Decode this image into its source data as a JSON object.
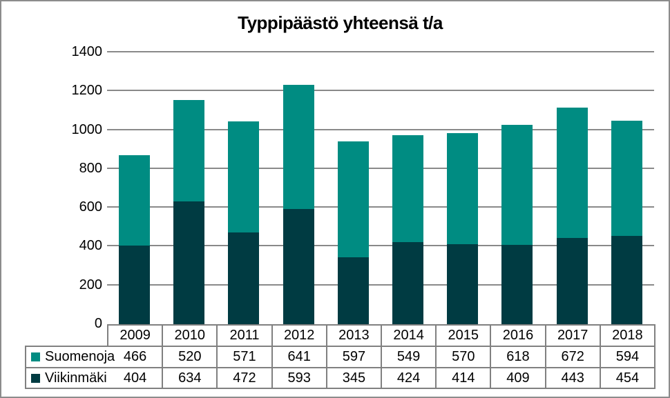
{
  "chart_data": {
    "type": "bar",
    "stacked": true,
    "title": "Typpipäästö yhteensä t/a",
    "categories": [
      "2009",
      "2010",
      "2011",
      "2012",
      "2013",
      "2014",
      "2015",
      "2016",
      "2017",
      "2018"
    ],
    "series": [
      {
        "name": "Suomenoja",
        "color": "#008C82",
        "values": [
          466,
          520,
          571,
          641,
          597,
          549,
          570,
          618,
          672,
          594
        ]
      },
      {
        "name": "Viikinmäki",
        "color": "#003B42",
        "values": [
          404,
          634,
          472,
          593,
          345,
          424,
          414,
          409,
          443,
          454
        ]
      }
    ],
    "stack_order_bottom_to_top": [
      "Viikinmäki",
      "Suomenoja"
    ],
    "ylim": [
      0,
      1400
    ],
    "yticks": [
      0,
      200,
      400,
      600,
      800,
      1000,
      1200,
      1400
    ],
    "xlabel": "",
    "ylabel": "",
    "grid": "horizontal",
    "legend_position": "left-of-table",
    "data_table_shown": true
  },
  "colors": {
    "suomenoja": "#008C82",
    "viikinmaki": "#003B42",
    "gridline": "#898989",
    "table_border": "#808080",
    "frame_border": "#8C8C8C",
    "text": "#000000",
    "background": "#FFFFFF"
  }
}
